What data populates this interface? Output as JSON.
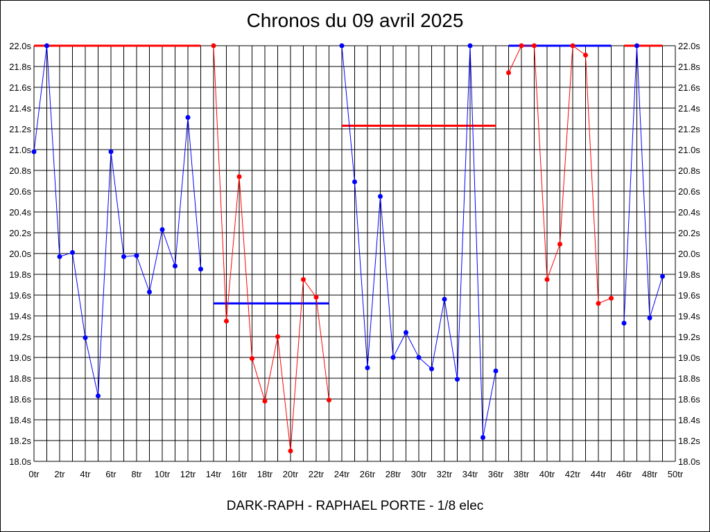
{
  "chart_data": {
    "type": "line",
    "title": "Chronos du 09 avril 2025",
    "subtitle": "DARK-RAPH - RAPHAEL PORTE - 1/8 elec",
    "xlabel": "",
    "ylabel": "",
    "xlim": [
      0,
      50
    ],
    "ylim": [
      18.0,
      22.0
    ],
    "grid": true,
    "x_ticks": [
      "0tr",
      "2tr",
      "4tr",
      "6tr",
      "8tr",
      "10tr",
      "12tr",
      "14tr",
      "16tr",
      "18tr",
      "20tr",
      "22tr",
      "24tr",
      "26tr",
      "28tr",
      "30tr",
      "32tr",
      "34tr",
      "36tr",
      "38tr",
      "40tr",
      "42tr",
      "44tr",
      "46tr",
      "48tr",
      "50tr"
    ],
    "y_ticks": [
      "18.0s",
      "18.2s",
      "18.4s",
      "18.6s",
      "18.8s",
      "19.0s",
      "19.2s",
      "19.4s",
      "19.6s",
      "19.8s",
      "20.0s",
      "20.2s",
      "20.4s",
      "20.6s",
      "20.8s",
      "21.0s",
      "21.2s",
      "21.4s",
      "21.6s",
      "21.8s",
      "22.0s"
    ],
    "series": [
      {
        "color": "#0000ff",
        "x": [
          0,
          1,
          2,
          3,
          4,
          5,
          6,
          7,
          8,
          9,
          10,
          11,
          12,
          13
        ],
        "values": [
          20.98,
          22.0,
          19.97,
          20.01,
          19.19,
          18.63,
          20.98,
          19.97,
          19.98,
          19.63,
          20.23,
          19.88,
          21.31,
          19.85
        ]
      },
      {
        "color": "#ff0000",
        "x": [
          14,
          15,
          16,
          17,
          18,
          19,
          20,
          21,
          22,
          23
        ],
        "values": [
          22.0,
          19.35,
          20.74,
          18.99,
          18.58,
          19.2,
          18.1,
          19.75,
          19.58,
          18.59
        ]
      },
      {
        "color": "#0000ff",
        "x": [
          24,
          25,
          26,
          27,
          28,
          29,
          30,
          31,
          32,
          33,
          34,
          35,
          36
        ],
        "values": [
          22.0,
          20.69,
          18.9,
          20.55,
          19.0,
          19.24,
          19.0,
          18.89,
          19.56,
          18.79,
          22.0,
          18.23,
          18.87
        ]
      },
      {
        "color": "#ff0000",
        "x": [
          37,
          38,
          39,
          40,
          41,
          42,
          43,
          44,
          45
        ],
        "values": [
          21.74,
          22.0,
          22.0,
          19.75,
          20.09,
          22.0,
          21.91,
          19.52,
          19.57
        ]
      },
      {
        "color": "#0000ff",
        "x": [
          46,
          47,
          48,
          49
        ],
        "values": [
          19.33,
          22.0,
          19.38,
          19.78
        ]
      }
    ],
    "mean_lines": [
      {
        "color": "#ff0000",
        "x": [
          0,
          13
        ],
        "y": 22.0
      },
      {
        "color": "#0000ff",
        "x": [
          14,
          23
        ],
        "y": 19.52
      },
      {
        "color": "#ff0000",
        "x": [
          24,
          36
        ],
        "y": 21.23
      },
      {
        "color": "#0000ff",
        "x": [
          37,
          45
        ],
        "y": 22.0
      },
      {
        "color": "#ff0000",
        "x": [
          46,
          49
        ],
        "y": 22.0
      }
    ]
  }
}
